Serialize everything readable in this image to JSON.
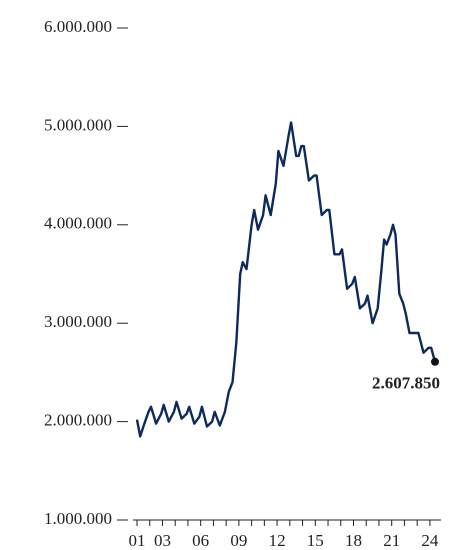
{
  "chart_data": {
    "type": "line",
    "x": [
      2001.0,
      2001.25,
      2001.5,
      2001.9,
      2002.1,
      2002.5,
      2002.9,
      2003.1,
      2003.5,
      2003.9,
      2004.1,
      2004.5,
      2004.9,
      2005.1,
      2005.5,
      2005.9,
      2006.1,
      2006.5,
      2006.9,
      2007.1,
      2007.5,
      2007.9,
      2008.2,
      2008.5,
      2008.8,
      2009.1,
      2009.3,
      2009.6,
      2010.0,
      2010.2,
      2010.5,
      2010.9,
      2011.1,
      2011.5,
      2011.9,
      2012.1,
      2012.5,
      2012.9,
      2013.1,
      2013.5,
      2013.7,
      2013.9,
      2014.1,
      2014.5,
      2014.9,
      2015.1,
      2015.5,
      2015.9,
      2016.1,
      2016.5,
      2016.9,
      2017.1,
      2017.5,
      2017.9,
      2018.1,
      2018.5,
      2018.9,
      2019.1,
      2019.5,
      2019.9,
      2020.2,
      2020.4,
      2020.6,
      2020.9,
      2021.1,
      2021.3,
      2021.6,
      2021.9,
      2022.1,
      2022.4,
      2022.8,
      2023.1,
      2023.5,
      2023.9,
      2024.1,
      2024.4
    ],
    "series": [
      {
        "color": "#0d2a5e",
        "values": [
          2020000,
          1850000,
          1950000,
          2100000,
          2150000,
          1980000,
          2080000,
          2170000,
          2000000,
          2100000,
          2200000,
          2030000,
          2080000,
          2150000,
          1980000,
          2050000,
          2150000,
          1950000,
          2000000,
          2100000,
          1960000,
          2100000,
          2300000,
          2400000,
          2800000,
          3500000,
          3620000,
          3550000,
          4000000,
          4150000,
          3950000,
          4100000,
          4300000,
          4100000,
          4420000,
          4750000,
          4600000,
          4900000,
          5040000,
          4700000,
          4700000,
          4800000,
          4800000,
          4450000,
          4500000,
          4500000,
          4100000,
          4150000,
          4150000,
          3700000,
          3700000,
          3750000,
          3350000,
          3400000,
          3470000,
          3150000,
          3200000,
          3280000,
          3000000,
          3150000,
          3550000,
          3850000,
          3800000,
          3900000,
          4000000,
          3900000,
          3300000,
          3200000,
          3100000,
          2900000,
          2900000,
          2900000,
          2700000,
          2750000,
          2750000,
          2607850
        ],
        "value_labels": [
          null,
          null,
          null,
          null,
          null,
          null,
          null,
          null,
          null,
          null,
          null,
          null,
          null,
          null,
          null,
          null,
          null,
          null,
          null,
          null,
          null,
          null,
          null,
          null,
          null,
          null,
          null,
          null,
          null,
          null,
          null,
          null,
          null,
          null,
          null,
          null,
          null,
          null,
          null,
          null,
          null,
          null,
          null,
          null,
          null,
          null,
          null,
          null,
          null,
          null,
          null,
          null,
          null,
          null,
          null,
          null,
          null,
          null,
          null,
          null,
          null,
          null,
          null,
          null,
          null,
          null,
          null,
          null,
          null,
          null,
          null,
          null,
          null,
          null,
          null,
          "2.607.850"
        ]
      }
    ],
    "xlim": [
      2001,
      2024.4
    ],
    "xticks": [
      {
        "value": 2001,
        "label": "01"
      },
      {
        "value": 2003,
        "label": "03"
      },
      {
        "value": 2006,
        "label": "06"
      },
      {
        "value": 2009,
        "label": "09"
      },
      {
        "value": 2012,
        "label": "12"
      },
      {
        "value": 2015,
        "label": "15"
      },
      {
        "value": 2018,
        "label": "18"
      },
      {
        "value": 2021,
        "label": "21"
      },
      {
        "value": 2024,
        "label": "24"
      }
    ],
    "xminor_ticks": [
      2002,
      2004,
      2005,
      2007,
      2008,
      2010,
      2011,
      2013,
      2014,
      2016,
      2017,
      2019,
      2020,
      2022,
      2023
    ],
    "ylim": [
      1000000,
      6000000
    ],
    "yticks": [
      {
        "value": 1000000,
        "label": "1.000.000"
      },
      {
        "value": 2000000,
        "label": "2.000.000"
      },
      {
        "value": 3000000,
        "label": "3.000.000"
      },
      {
        "value": 4000000,
        "label": "4.000.000"
      },
      {
        "value": 5000000,
        "label": "5.000.000"
      },
      {
        "value": 6000000,
        "label": "6.000.000"
      }
    ]
  }
}
